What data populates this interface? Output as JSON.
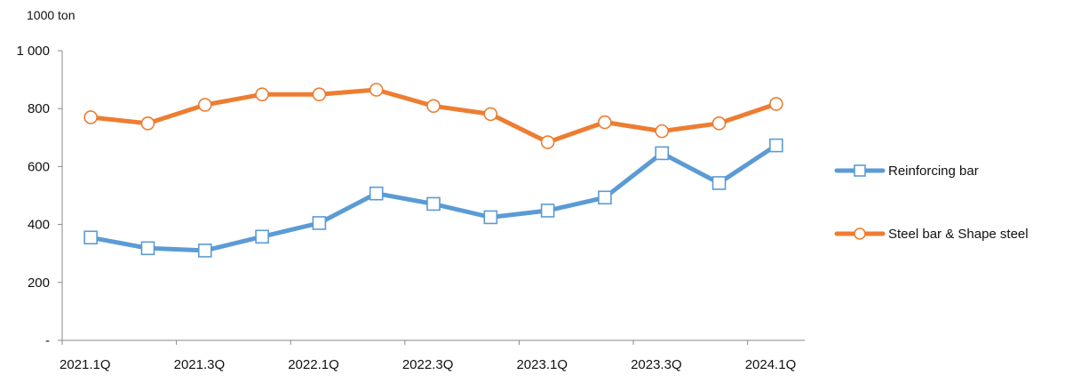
{
  "chart_data": {
    "type": "line",
    "unit_label": "1000 ton",
    "categories": [
      "2021.1Q",
      "2021.2Q",
      "2021.3Q",
      "2021.4Q",
      "2022.1Q",
      "2022.2Q",
      "2022.3Q",
      "2022.4Q",
      "2023.1Q",
      "2023.2Q",
      "2023.3Q",
      "2023.4Q",
      "2024.1Q"
    ],
    "x_tick_labels": [
      "2021.1Q",
      "2021.3Q",
      "2022.1Q",
      "2022.3Q",
      "2023.1Q",
      "2023.3Q",
      "2024.1Q"
    ],
    "ylim": [
      0,
      1000
    ],
    "y_ticks": [
      {
        "value": 0,
        "label": "-"
      },
      {
        "value": 200,
        "label": "200"
      },
      {
        "value": 400,
        "label": "400"
      },
      {
        "value": 600,
        "label": "600"
      },
      {
        "value": 800,
        "label": "800"
      },
      {
        "value": 1000,
        "label": "1 000"
      }
    ],
    "grid": false,
    "legend_position": "right",
    "series": [
      {
        "name": "Reinforcing bar",
        "color": "#5B9BD5",
        "marker": "square",
        "values": [
          355,
          318,
          310,
          358,
          405,
          507,
          471,
          425,
          448,
          493,
          646,
          543,
          673
        ]
      },
      {
        "name": "Steel bar & Shape steel",
        "color": "#ED7D31",
        "marker": "circle",
        "values": [
          770,
          749,
          813,
          849,
          849,
          865,
          809,
          781,
          684,
          753,
          722,
          749,
          816
        ]
      }
    ]
  }
}
